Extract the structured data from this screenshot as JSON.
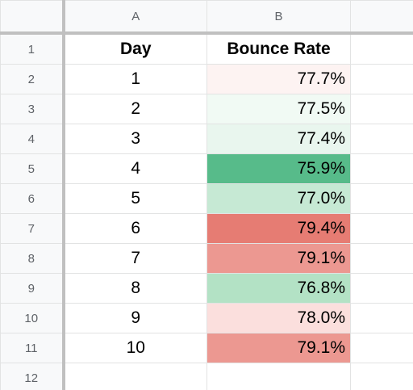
{
  "columns": [
    "A",
    "B"
  ],
  "rows": [
    {
      "num": "1",
      "a": "Day",
      "b": "Bounce Rate",
      "header": true
    },
    {
      "num": "2",
      "a": "1",
      "b": "77.7%",
      "color": "#fdf3f2"
    },
    {
      "num": "3",
      "a": "2",
      "b": "77.5%",
      "color": "#f1faf4"
    },
    {
      "num": "4",
      "a": "3",
      "b": "77.4%",
      "color": "#e9f6ee"
    },
    {
      "num": "5",
      "a": "4",
      "b": "75.9%",
      "color": "#57bb8a"
    },
    {
      "num": "6",
      "a": "5",
      "b": "77.0%",
      "color": "#c6e9d4"
    },
    {
      "num": "7",
      "a": "6",
      "b": "79.4%",
      "color": "#e67c73"
    },
    {
      "num": "8",
      "a": "7",
      "b": "79.1%",
      "color": "#ec9891"
    },
    {
      "num": "9",
      "a": "8",
      "b": "76.8%",
      "color": "#b3e2c5"
    },
    {
      "num": "10",
      "a": "9",
      "b": "78.0%",
      "color": "#fbdfdd"
    },
    {
      "num": "11",
      "a": "10",
      "b": "79.1%",
      "color": "#ec9891"
    },
    {
      "num": "12",
      "a": "",
      "b": ""
    }
  ]
}
